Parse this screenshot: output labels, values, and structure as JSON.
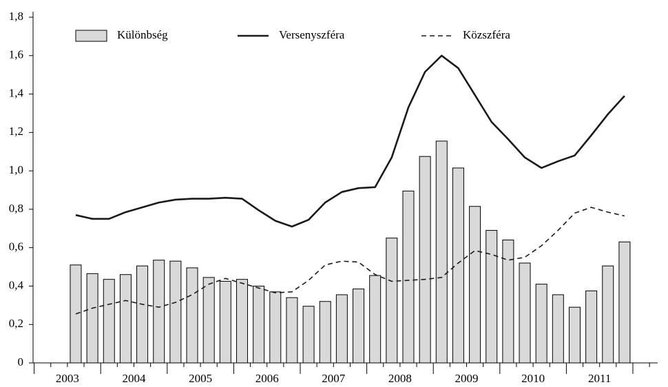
{
  "chart_data": {
    "type": "bar",
    "categories": [
      null,
      null,
      null,
      null,
      null,
      null,
      null,
      null,
      null,
      null,
      null,
      null,
      null,
      null,
      null,
      null,
      null,
      null,
      null,
      null,
      null,
      null,
      null,
      null,
      null,
      null,
      null,
      null,
      null,
      null,
      null,
      null,
      null,
      null,
      null,
      null
    ],
    "year_labels": [
      "2003",
      "2004",
      "2005",
      "2006",
      "2007",
      "2008",
      "2009",
      "2010",
      "2011"
    ],
    "series": [
      {
        "name": "Különbség",
        "kind": "bar",
        "color": "#d9d9d9",
        "values": [
          null,
          null,
          0.51,
          0.465,
          0.435,
          0.46,
          0.505,
          0.535,
          0.53,
          0.495,
          0.445,
          0.425,
          0.435,
          0.4,
          0.37,
          0.34,
          0.295,
          0.32,
          0.355,
          0.385,
          0.455,
          0.65,
          0.895,
          1.075,
          1.155,
          1.015,
          0.815,
          0.69,
          0.64,
          0.52,
          0.41,
          0.355,
          0.29,
          0.375,
          0.505,
          0.63
        ]
      },
      {
        "name": "Versenyszféra",
        "kind": "line",
        "dashed": false,
        "color": "#1a1a1a",
        "values": [
          null,
          null,
          0.77,
          0.75,
          0.75,
          0.785,
          0.81,
          0.835,
          0.85,
          0.855,
          0.855,
          0.86,
          0.855,
          0.795,
          0.74,
          0.71,
          0.745,
          0.835,
          0.89,
          0.91,
          0.915,
          1.07,
          1.33,
          1.515,
          1.6,
          1.535,
          1.395,
          1.255,
          1.165,
          1.07,
          1.015,
          1.05,
          1.08,
          1.185,
          1.295,
          1.39
        ]
      },
      {
        "name": "Közszféra",
        "kind": "line",
        "dashed": true,
        "color": "#1a1a1a",
        "values": [
          null,
          null,
          0.255,
          0.285,
          0.305,
          0.325,
          0.305,
          0.29,
          0.315,
          0.355,
          0.41,
          0.44,
          0.415,
          0.39,
          0.365,
          0.37,
          0.43,
          0.51,
          0.53,
          0.525,
          0.46,
          0.425,
          0.43,
          0.435,
          0.445,
          0.52,
          0.585,
          0.565,
          0.535,
          0.55,
          0.61,
          0.69,
          0.78,
          0.81,
          0.785,
          0.765
        ]
      }
    ],
    "ylim": [
      0,
      1.8
    ],
    "yticks": [
      0,
      {
        "value": 0.2,
        "label": "0,2"
      },
      {
        "value": 0.4,
        "label": "0,4"
      },
      {
        "value": 0.6,
        "label": "0,6"
      },
      {
        "value": 0.8,
        "label": "0,8"
      },
      {
        "value": 1.0,
        "label": "1,0"
      },
      {
        "value": 1.2,
        "label": "1,2"
      },
      {
        "value": 1.4,
        "label": "1,4"
      },
      {
        "value": 1.6,
        "label": "1,6"
      },
      {
        "value": 1.8,
        "label": "1,8"
      }
    ],
    "grid": false,
    "legend": "top"
  }
}
